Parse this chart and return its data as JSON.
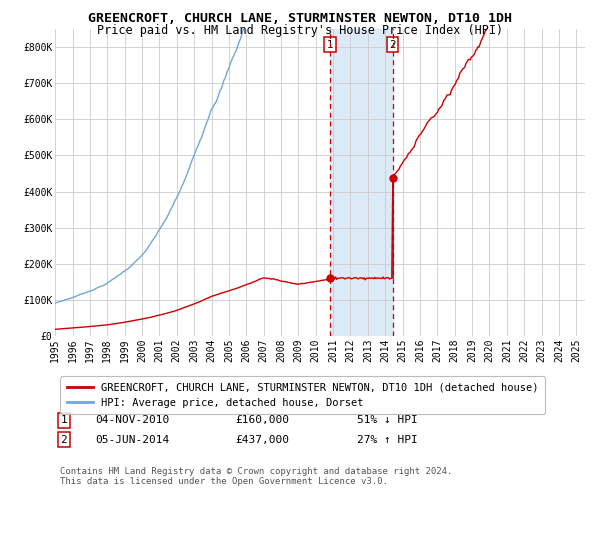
{
  "title": "GREENCROFT, CHURCH LANE, STURMINSTER NEWTON, DT10 1DH",
  "subtitle": "Price paid vs. HM Land Registry's House Price Index (HPI)",
  "xlim_start": 1995.0,
  "xlim_end": 2025.5,
  "ylim_min": 0,
  "ylim_max": 850000,
  "yticks": [
    0,
    100000,
    200000,
    300000,
    400000,
    500000,
    600000,
    700000,
    800000
  ],
  "ytick_labels": [
    "£0",
    "£100K",
    "£200K",
    "£300K",
    "£400K",
    "£500K",
    "£600K",
    "£700K",
    "£800K"
  ],
  "sale1_date": 2010.84,
  "sale1_price": 160000,
  "sale2_date": 2014.42,
  "sale2_price": 437000,
  "shade_start": 2010.84,
  "shade_end": 2014.42,
  "hpi_color": "#6fa8dc",
  "price_color": "#cc0000",
  "dot_color": "#cc0000",
  "shade_color": "#dce9f7",
  "grid_color": "#cccccc",
  "bg_color": "#ffffff",
  "legend_label_red": "GREENCROFT, CHURCH LANE, STURMINSTER NEWTON, DT10 1DH (detached house)",
  "legend_label_blue": "HPI: Average price, detached house, Dorset",
  "table_row1_num": "1",
  "table_row1_date": "04-NOV-2010",
  "table_row1_price": "£160,000",
  "table_row1_hpi": "51% ↓ HPI",
  "table_row2_num": "2",
  "table_row2_date": "05-JUN-2014",
  "table_row2_price": "£437,000",
  "table_row2_hpi": "27% ↑ HPI",
  "footnote": "Contains HM Land Registry data © Crown copyright and database right 2024.\nThis data is licensed under the Open Government Licence v3.0.",
  "title_fontsize": 9.5,
  "subtitle_fontsize": 8.5,
  "tick_fontsize": 7,
  "legend_fontsize": 7.5,
  "table_fontsize": 8,
  "footnote_fontsize": 6.5
}
